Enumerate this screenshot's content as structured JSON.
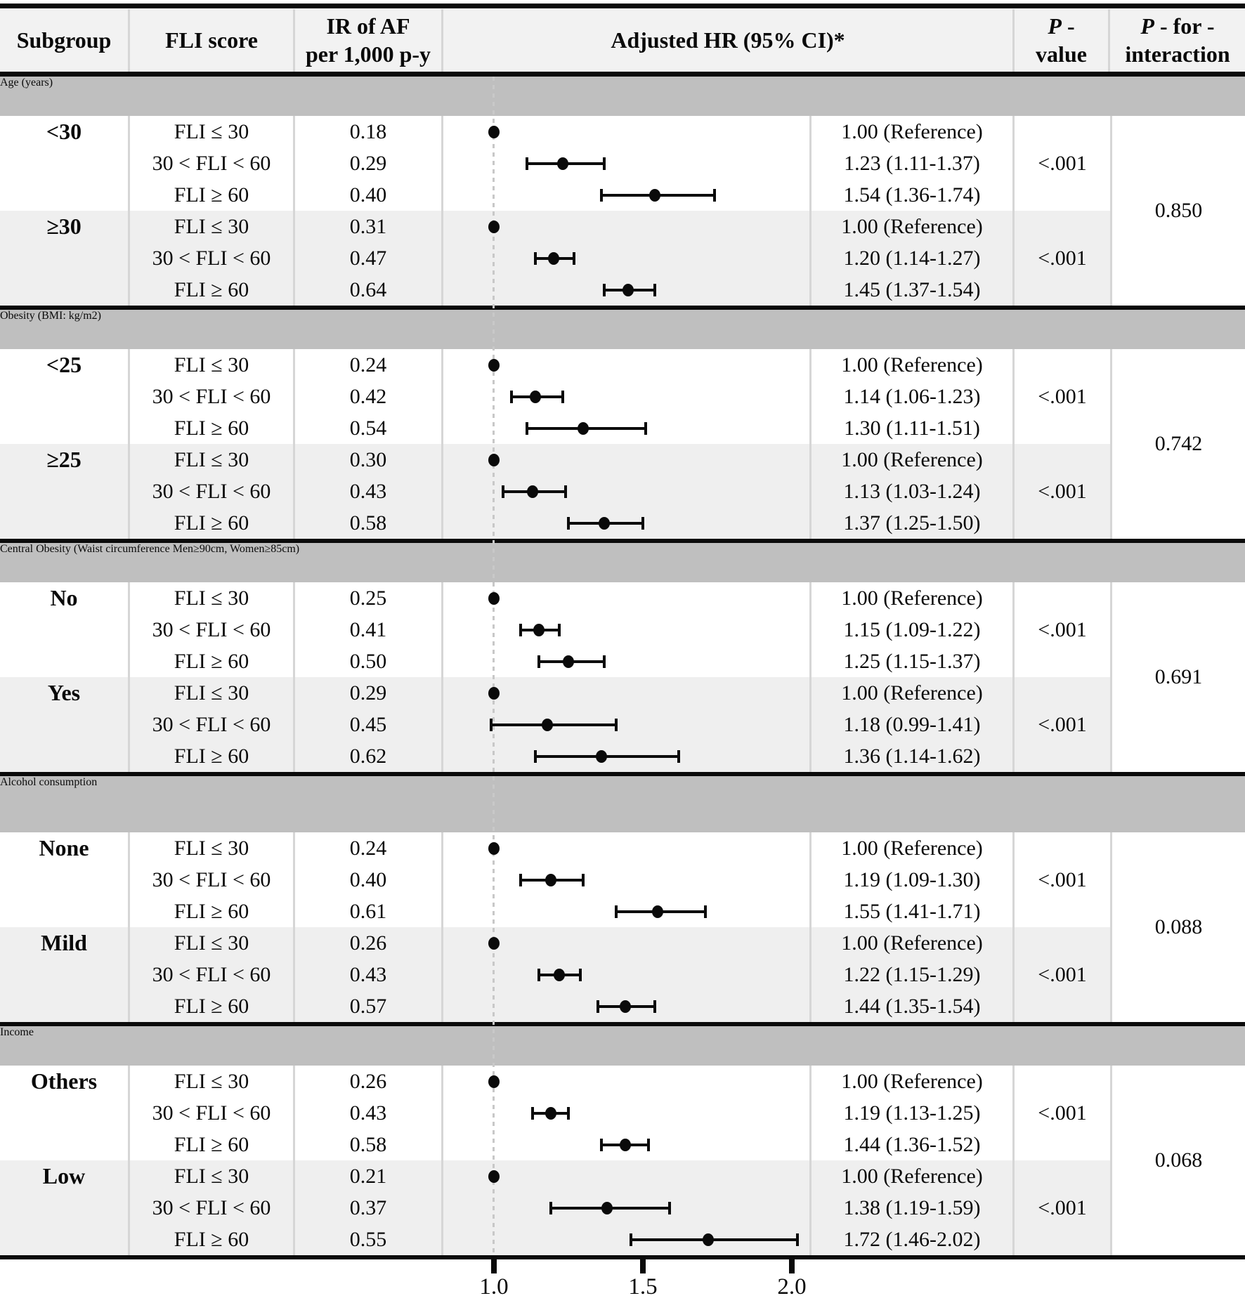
{
  "header": {
    "subgroup": "Subgroup",
    "fli_score": "FLI score",
    "ir": "IR of AF\nper 1,000 p-y",
    "adjusted_hr": "Adjusted HR (95% CI)*",
    "p_italic": "P",
    "p_value_rest": " -\nvalue",
    "p_interaction_italic": "P",
    "p_interaction_rest": " - for -\ninteraction"
  },
  "colors": {
    "section_bar": "#bfbfbf",
    "row_shade": "#efefef",
    "header_bg": "#f2f2f2",
    "marker": "#0a0a0a",
    "grid_line": "#d6d6d6",
    "reference_line": "#c8c8c8"
  },
  "chart_data": {
    "type": "forest",
    "x_axis": {
      "ticks": [
        "1.0",
        "1.5",
        "2.0"
      ],
      "tick_values": [
        1.0,
        1.5,
        2.0
      ],
      "reference_value": 1.0,
      "range": [
        0.83,
        2.1
      ],
      "scale": "linear"
    },
    "sections": [
      {
        "label": "Age (years)",
        "p_interaction": "0.850",
        "subgroups": [
          {
            "label": "<30",
            "p_value": "<.001",
            "rows": [
              {
                "fli": "FLI ≤ 30",
                "ir": "0.18",
                "hr_text": "1.00 (Reference)",
                "hr": 1.0,
                "lo": null,
                "hi": null,
                "ref": true
              },
              {
                "fli": "30 < FLI < 60",
                "ir": "0.29",
                "hr_text": "1.23 (1.11-1.37)",
                "hr": 1.23,
                "lo": 1.11,
                "hi": 1.37,
                "ref": false
              },
              {
                "fli": "FLI ≥ 60",
                "ir": "0.40",
                "hr_text": "1.54 (1.36-1.74)",
                "hr": 1.54,
                "lo": 1.36,
                "hi": 1.74,
                "ref": false
              }
            ]
          },
          {
            "label": "≥30",
            "p_value": "<.001",
            "rows": [
              {
                "fli": "FLI ≤ 30",
                "ir": "0.31",
                "hr_text": "1.00 (Reference)",
                "hr": 1.0,
                "lo": null,
                "hi": null,
                "ref": true
              },
              {
                "fli": "30 < FLI < 60",
                "ir": "0.47",
                "hr_text": "1.20 (1.14-1.27)",
                "hr": 1.2,
                "lo": 1.14,
                "hi": 1.27,
                "ref": false
              },
              {
                "fli": "FLI ≥ 60",
                "ir": "0.64",
                "hr_text": "1.45 (1.37-1.54)",
                "hr": 1.45,
                "lo": 1.37,
                "hi": 1.54,
                "ref": false
              }
            ]
          }
        ]
      },
      {
        "label": "Obesity (BMI: kg/m2)",
        "p_interaction": "0.742",
        "subgroups": [
          {
            "label": "<25",
            "p_value": "<.001",
            "rows": [
              {
                "fli": "FLI ≤ 30",
                "ir": "0.24",
                "hr_text": "1.00 (Reference)",
                "hr": 1.0,
                "lo": null,
                "hi": null,
                "ref": true
              },
              {
                "fli": "30 < FLI < 60",
                "ir": "0.42",
                "hr_text": "1.14 (1.06-1.23)",
                "hr": 1.14,
                "lo": 1.06,
                "hi": 1.23,
                "ref": false
              },
              {
                "fli": "FLI ≥ 60",
                "ir": "0.54",
                "hr_text": "1.30 (1.11-1.51)",
                "hr": 1.3,
                "lo": 1.11,
                "hi": 1.51,
                "ref": false
              }
            ]
          },
          {
            "label": "≥25",
            "p_value": "<.001",
            "rows": [
              {
                "fli": "FLI ≤ 30",
                "ir": "0.30",
                "hr_text": "1.00 (Reference)",
                "hr": 1.0,
                "lo": null,
                "hi": null,
                "ref": true
              },
              {
                "fli": "30 < FLI < 60",
                "ir": "0.43",
                "hr_text": "1.13 (1.03-1.24)",
                "hr": 1.13,
                "lo": 1.03,
                "hi": 1.24,
                "ref": false
              },
              {
                "fli": "FLI ≥ 60",
                "ir": "0.58",
                "hr_text": "1.37 (1.25-1.50)",
                "hr": 1.37,
                "lo": 1.25,
                "hi": 1.5,
                "ref": false
              }
            ]
          }
        ]
      },
      {
        "label": "Central Obesity (Waist circumference Men≥90cm, Women≥85cm)",
        "p_interaction": "0.691",
        "subgroups": [
          {
            "label": "No",
            "p_value": "<.001",
            "rows": [
              {
                "fli": "FLI ≤ 30",
                "ir": "0.25",
                "hr_text": "1.00 (Reference)",
                "hr": 1.0,
                "lo": null,
                "hi": null,
                "ref": true
              },
              {
                "fli": "30 < FLI < 60",
                "ir": "0.41",
                "hr_text": "1.15 (1.09-1.22)",
                "hr": 1.15,
                "lo": 1.09,
                "hi": 1.22,
                "ref": false
              },
              {
                "fli": "FLI ≥ 60",
                "ir": "0.50",
                "hr_text": "1.25 (1.15-1.37)",
                "hr": 1.25,
                "lo": 1.15,
                "hi": 1.37,
                "ref": false
              }
            ]
          },
          {
            "label": "Yes",
            "p_value": "<.001",
            "rows": [
              {
                "fli": "FLI ≤ 30",
                "ir": "0.29",
                "hr_text": "1.00 (Reference)",
                "hr": 1.0,
                "lo": null,
                "hi": null,
                "ref": true
              },
              {
                "fli": "30 < FLI < 60",
                "ir": "0.45",
                "hr_text": "1.18 (0.99-1.41)",
                "hr": 1.18,
                "lo": 0.99,
                "hi": 1.41,
                "ref": false
              },
              {
                "fli": "FLI ≥ 60",
                "ir": "0.62",
                "hr_text": "1.36 (1.14-1.62)",
                "hr": 1.36,
                "lo": 1.14,
                "hi": 1.62,
                "ref": false
              }
            ]
          }
        ]
      },
      {
        "label": "Alcohol consumption",
        "p_interaction": "0.088",
        "subgroups": [
          {
            "label": "None",
            "p_value": "<.001",
            "rows": [
              {
                "fli": "FLI ≤ 30",
                "ir": "0.24",
                "hr_text": "1.00 (Reference)",
                "hr": 1.0,
                "lo": null,
                "hi": null,
                "ref": true
              },
              {
                "fli": "30 < FLI < 60",
                "ir": "0.40",
                "hr_text": "1.19 (1.09-1.30)",
                "hr": 1.19,
                "lo": 1.09,
                "hi": 1.3,
                "ref": false
              },
              {
                "fli": "FLI ≥ 60",
                "ir": "0.61",
                "hr_text": "1.55 (1.41-1.71)",
                "hr": 1.55,
                "lo": 1.41,
                "hi": 1.71,
                "ref": false
              }
            ]
          },
          {
            "label": "Mild",
            "p_value": "<.001",
            "rows": [
              {
                "fli": "FLI ≤ 30",
                "ir": "0.26",
                "hr_text": "1.00 (Reference)",
                "hr": 1.0,
                "lo": null,
                "hi": null,
                "ref": true
              },
              {
                "fli": "30 < FLI < 60",
                "ir": "0.43",
                "hr_text": "1.22 (1.15-1.29)",
                "hr": 1.22,
                "lo": 1.15,
                "hi": 1.29,
                "ref": false
              },
              {
                "fli": "FLI ≥ 60",
                "ir": "0.57",
                "hr_text": "1.44 (1.35-1.54)",
                "hr": 1.44,
                "lo": 1.35,
                "hi": 1.54,
                "ref": false
              }
            ]
          }
        ]
      },
      {
        "label": "Income",
        "p_interaction": "0.068",
        "subgroups": [
          {
            "label": "Others",
            "p_value": "<.001",
            "rows": [
              {
                "fli": "FLI ≤ 30",
                "ir": "0.26",
                "hr_text": "1.00 (Reference)",
                "hr": 1.0,
                "lo": null,
                "hi": null,
                "ref": true
              },
              {
                "fli": "30 < FLI < 60",
                "ir": "0.43",
                "hr_text": "1.19 (1.13-1.25)",
                "hr": 1.19,
                "lo": 1.13,
                "hi": 1.25,
                "ref": false
              },
              {
                "fli": "FLI ≥ 60",
                "ir": "0.58",
                "hr_text": "1.44 (1.36-1.52)",
                "hr": 1.44,
                "lo": 1.36,
                "hi": 1.52,
                "ref": false
              }
            ]
          },
          {
            "label": "Low",
            "p_value": "<.001",
            "rows": [
              {
                "fli": "FLI ≤ 30",
                "ir": "0.21",
                "hr_text": "1.00 (Reference)",
                "hr": 1.0,
                "lo": null,
                "hi": null,
                "ref": true
              },
              {
                "fli": "30 < FLI < 60",
                "ir": "0.37",
                "hr_text": "1.38 (1.19-1.59)",
                "hr": 1.38,
                "lo": 1.19,
                "hi": 1.59,
                "ref": false
              },
              {
                "fli": "FLI ≥ 60",
                "ir": "0.55",
                "hr_text": "1.72 (1.46-2.02)",
                "hr": 1.72,
                "lo": 1.46,
                "hi": 2.02,
                "ref": false
              }
            ]
          }
        ]
      }
    ]
  }
}
